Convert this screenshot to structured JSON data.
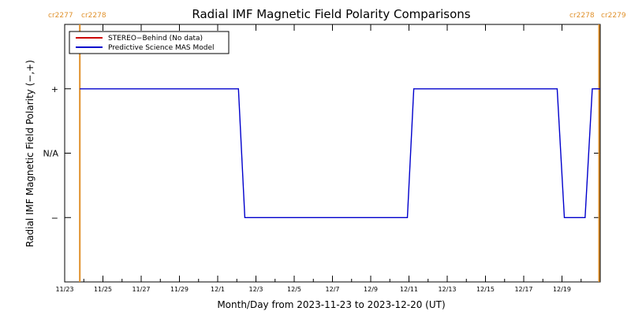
{
  "chart_data": {
    "type": "line",
    "title": "Radial IMF Magnetic Field Polarity Comparisons",
    "xlabel": "Month/Day from 2023-11-23 to 2023-12-20 (UT)",
    "ylabel": "Radial IMF Magnetic Field Polarity (−,+)",
    "x_start": "2023-11-23",
    "x_end": "2023-12-21",
    "x_ticks": [
      "11/23",
      "11/25",
      "11/27",
      "11/29",
      "12/1",
      "12/3",
      "12/5",
      "12/7",
      "12/9",
      "12/11",
      "12/13",
      "12/15",
      "12/17",
      "12/19"
    ],
    "y_ticks": [
      {
        "label": "+",
        "value": 1
      },
      {
        "label": "N/A",
        "value": 0
      },
      {
        "label": "−",
        "value": -1
      }
    ],
    "ylim": [
      -2,
      2
    ],
    "legend": {
      "position": "top-left",
      "entries": [
        {
          "label": "STEREO−Behind (No data)",
          "color": "#cc0000"
        },
        {
          "label": "Predictive Science MAS Model",
          "color": "#0000cc"
        }
      ]
    },
    "series": [
      {
        "name": "Predictive Science MAS Model",
        "color": "#0000cc",
        "x": [
          "2023-11-23T19:00",
          "2023-12-02T02:00",
          "2023-12-02T10:00",
          "2023-12-10T22:00",
          "2023-12-11T06:00",
          "2023-12-18T18:00",
          "2023-12-19T03:00",
          "2023-12-20T05:00",
          "2023-12-20T14:00",
          "2023-12-21T00:00"
        ],
        "y": [
          1,
          1,
          -1,
          -1,
          1,
          1,
          -1,
          -1,
          1,
          1
        ]
      }
    ],
    "carrington_markers": [
      {
        "date": "2023-11-23T19:00",
        "labels": [
          "cr2277",
          "cr2278"
        ],
        "color": "#e0902a"
      },
      {
        "date": "2023-12-21T00:00",
        "labels": [
          "cr2278",
          "cr2279"
        ],
        "color": "#e0902a"
      }
    ]
  }
}
